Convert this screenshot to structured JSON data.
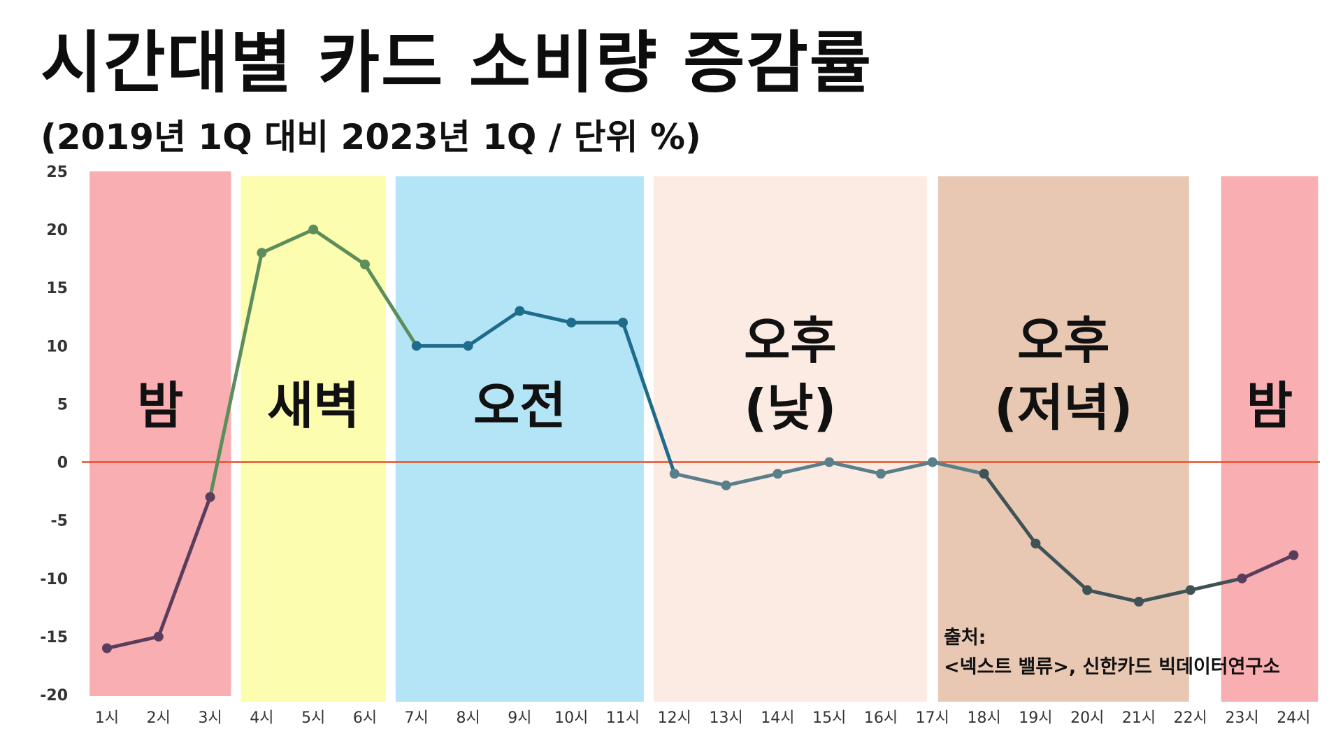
{
  "title": "시간대별 카드 소비량 증감률",
  "subtitle": "(2019년 1Q 대비 2023년 1Q / 단위 %)",
  "source_label": "출처:",
  "source_text": "<넥스트 밸류>, 신한카드 빅데이터연구소",
  "colors": {
    "zero_line": "#e8542e",
    "night": "#f9aeb2",
    "dawn": "#fdfdb0",
    "morning": "#b3e5f6",
    "afternoon_day": "#fbebe3",
    "afternoon_evening": "#e8c8b3",
    "line_night": "#5a3d5c",
    "line_dawn": "#5b8e5a",
    "line_morning": "#1e6b8c",
    "line_day": "#5a7f8a",
    "line_evening": "#3f5256"
  },
  "chart_data": {
    "type": "line",
    "title": "시간대별 카드 소비량 증감률",
    "subtitle": "(2019년 1Q 대비 2023년 1Q / 단위 %)",
    "xlabel": "",
    "ylabel": "",
    "ylim": [
      -20,
      25
    ],
    "yticks": [
      25,
      20,
      15,
      10,
      5,
      0,
      -5,
      -10,
      -15,
      -20
    ],
    "categories": [
      "1시",
      "2시",
      "3시",
      "4시",
      "5시",
      "6시",
      "7시",
      "8시",
      "9시",
      "10시",
      "11시",
      "12시",
      "13시",
      "14시",
      "15시",
      "16시",
      "17시",
      "18시",
      "19시",
      "20시",
      "21시",
      "22시",
      "23시",
      "24시"
    ],
    "series": [
      {
        "values": [
          -16,
          -15,
          -3,
          18,
          20,
          17,
          10,
          10,
          13,
          12,
          12,
          -1,
          -2,
          -1,
          0,
          -1,
          0,
          -1,
          -7,
          -11,
          -12,
          -11,
          -10,
          -8
        ]
      }
    ],
    "reference_line": 0,
    "bands": [
      {
        "label_lines": [
          "밤"
        ],
        "from": "1시",
        "to": "3시",
        "color_key": "night"
      },
      {
        "label_lines": [
          "새벽"
        ],
        "from": "4시",
        "to": "6시",
        "color_key": "dawn"
      },
      {
        "label_lines": [
          "오전"
        ],
        "from": "7시",
        "to": "11시",
        "color_key": "morning"
      },
      {
        "label_lines": [
          "오후",
          "(낮)"
        ],
        "from": "12시",
        "to": "17시",
        "color_key": "afternoon_day"
      },
      {
        "label_lines": [
          "오후",
          "(저녁)"
        ],
        "from": "17시",
        "to": "22시",
        "color_key": "afternoon_evening"
      },
      {
        "label_lines": [
          "밤"
        ],
        "from": "23시",
        "to": "24시",
        "color_key": "night"
      }
    ]
  }
}
